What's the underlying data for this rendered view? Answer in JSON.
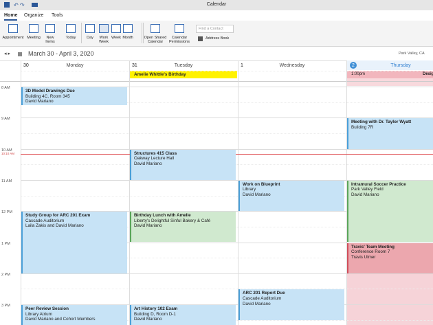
{
  "title_bar": {
    "title": "Calendar"
  },
  "ribbon": {
    "tabs": [
      "Home",
      "Organize",
      "Tools"
    ],
    "buttons": [
      "Appointment",
      "Meeting",
      "New Items",
      "Today",
      "Day",
      "Work Week",
      "Week",
      "Month",
      "Open Shared Calendar",
      "Calendar Permissions"
    ],
    "search_placeholder": "Find a Contact",
    "address_book": "Address Book"
  },
  "nav": {
    "date_range": "March 30 - April 3, 2020",
    "location": "Park Valley, CA"
  },
  "days": [
    {
      "date": "30",
      "name": "Monday"
    },
    {
      "date": "31",
      "name": "Tuesday"
    },
    {
      "date": "1",
      "name": "Wednesday"
    },
    {
      "date": "2",
      "name": "Thursday"
    }
  ],
  "all_day_events": [
    {
      "title": "Amelie Whittle's Birthday"
    },
    {
      "time": "1:00pm",
      "title": "Desig"
    }
  ],
  "time_labels": [
    "8 AM",
    "9 AM",
    "10 AM",
    "11 AM",
    "12 PM",
    "1 PM",
    "2 PM",
    "3 PM"
  ],
  "current_time": "10:10 AM",
  "events": [
    {
      "title": "3D Model Drawings Due",
      "lines": [
        "Building 4C, Room 345",
        "David Mariano"
      ]
    },
    {
      "title": "Study Group for ARC 201 Exam",
      "lines": [
        "Cascade Auditorium",
        "Laila Zakis and David Mariano"
      ]
    },
    {
      "title": "Peer Review Session",
      "lines": [
        "Library Atrium",
        "David Mariano and Cohort Members"
      ]
    },
    {
      "title": "Structures 415 Class",
      "lines": [
        "Oakway Lecture Hall",
        "David Mariano"
      ]
    },
    {
      "title": "Birthday Lunch with Amelie",
      "lines": [
        "Liberty's Delightful Sinful Bakery & Café",
        "David Mariano"
      ]
    },
    {
      "title": "Art History 102 Exam",
      "lines": [
        "Building D, Room D-1",
        "David Mariano"
      ]
    },
    {
      "title": "Work on Blueprint",
      "lines": [
        "Library",
        "David Mariano"
      ]
    },
    {
      "title": "ARC 201 Report Due",
      "lines": [
        "Cascade Auditorium",
        "David Mariano"
      ]
    },
    {
      "title": "Meeting with Dr. Taylor Wyatt",
      "lines": [
        "Building 7R"
      ]
    },
    {
      "title": "Intramural Soccer Practice",
      "lines": [
        "Park Valley Field",
        "David Mariano"
      ]
    },
    {
      "title": "Travis' Team Meeting",
      "lines": [
        "Conference Room 7",
        "Travis Ulmer"
      ]
    }
  ]
}
